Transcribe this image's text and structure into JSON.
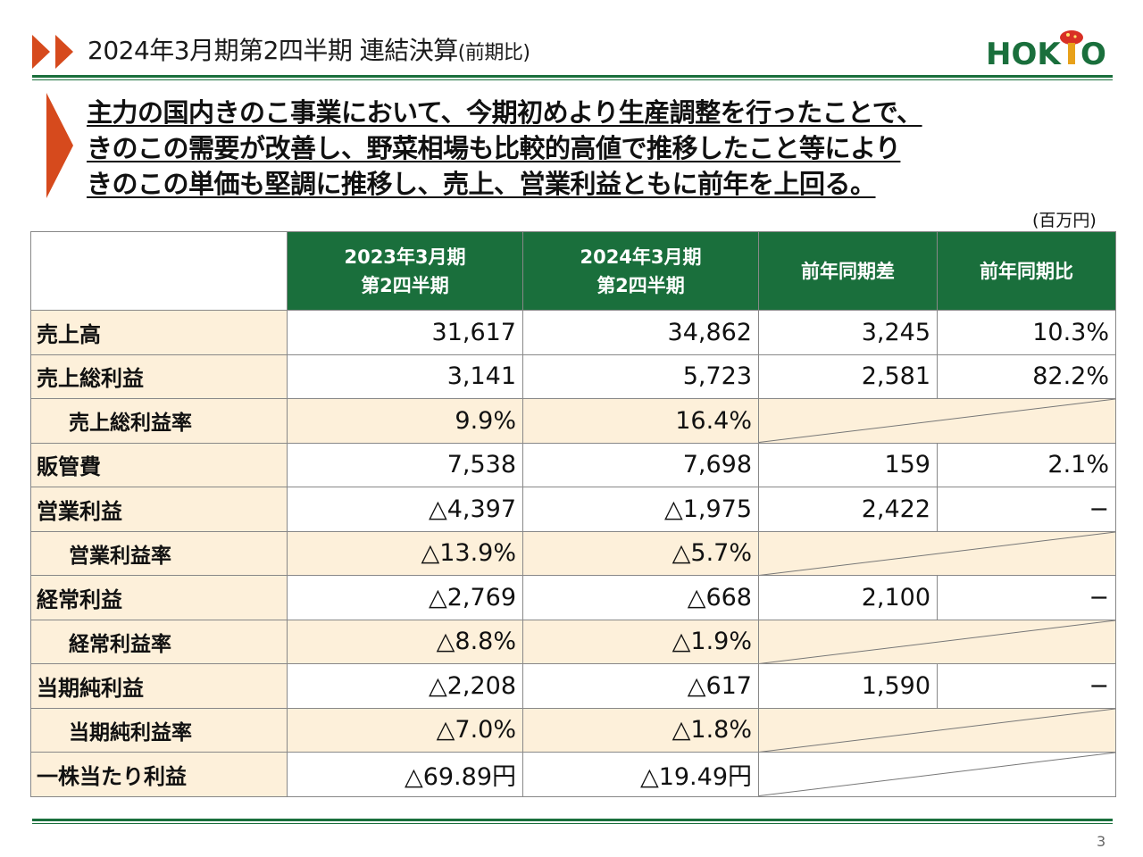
{
  "header": {
    "title": "2024年3月期第2四半期 連結決算",
    "title_suffix": "(前期比)",
    "logo_text": "HOKTO",
    "accent_color": "#1a6f3c",
    "arrow_color": "#d64a1d"
  },
  "headline": {
    "line1": "主力の国内きのこ事業において、今期初めより生産調整を行ったことで、",
    "line2": "きのこの需要が改善し、野菜相場も比較的高値で推移したこと等により",
    "line3": "きのこの単価も堅調に推移し、売上、営業利益ともに前年を上回る。"
  },
  "table": {
    "unit": "(百万円)",
    "headers": {
      "col1_line1": "2023年3月期",
      "col1_line2": "第2四半期",
      "col2_line1": "2024年3月期",
      "col2_line2": "第2四半期",
      "col3": "前年同期差",
      "col4": "前年同期比"
    },
    "rows": [
      {
        "label": "売上高",
        "v2023": "31,617",
        "v2024": "34,862",
        "diff": "3,245",
        "ratio": "10.3%"
      },
      {
        "label": "売上総利益",
        "v2023": "3,141",
        "v2024": "5,723",
        "diff": "2,581",
        "ratio": "82.2%"
      },
      {
        "label": "売上総利益率",
        "v2023": "9.9%",
        "v2024": "16.4%"
      },
      {
        "label": "販管費",
        "v2023": "7,538",
        "v2024": "7,698",
        "diff": "159",
        "ratio": "2.1%"
      },
      {
        "label": "営業利益",
        "v2023": "△4,397",
        "v2024": "△1,975",
        "diff": "2,422",
        "ratio": "−"
      },
      {
        "label": "営業利益率",
        "v2023": "△13.9%",
        "v2024": "△5.7%"
      },
      {
        "label": "経常利益",
        "v2023": "△2,769",
        "v2024": "△668",
        "diff": "2,100",
        "ratio": "−"
      },
      {
        "label": "経常利益率",
        "v2023": "△8.8%",
        "v2024": "△1.9%"
      },
      {
        "label": "当期純利益",
        "v2023": "△2,208",
        "v2024": "△617",
        "diff": "1,590",
        "ratio": "−"
      },
      {
        "label": "当期純利益率",
        "v2023": "△7.0%",
        "v2024": "△1.8%"
      },
      {
        "label": "一株当たり利益",
        "v2023": "△69.89円",
        "v2024": "△19.49円"
      }
    ]
  },
  "footer": {
    "page_number": "3"
  }
}
